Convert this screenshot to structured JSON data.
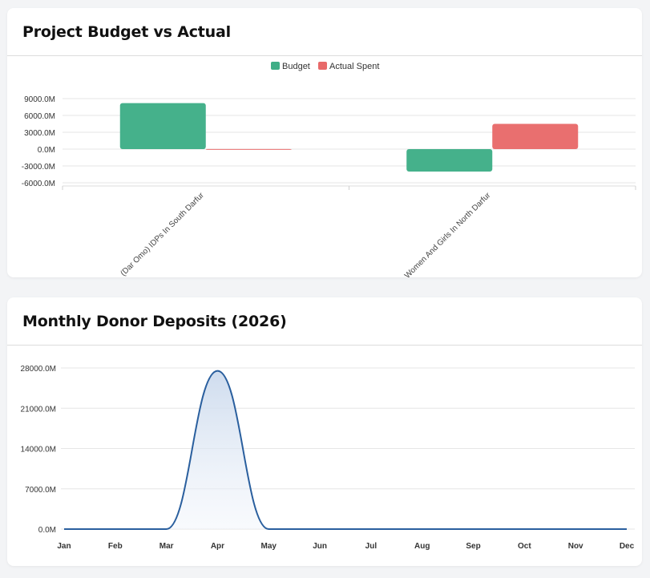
{
  "cards": {
    "budget": {
      "title": "Project Budget vs Actual"
    },
    "deposits": {
      "title": "Monthly Donor Deposits (2026)"
    }
  },
  "colors": {
    "budget": "#3fae87",
    "actual": "#e86a6a",
    "line": "#2a5f9e",
    "grid": "#e6e6e6"
  },
  "chart_data": [
    {
      "type": "bar",
      "categories": [
        "(Dar Omo) IDPs In South Darfur",
        "Women And Girls In North Darfur"
      ],
      "legend": [
        "Budget",
        "Actual Spent"
      ],
      "series": [
        {
          "name": "Budget",
          "values": [
            8200,
            -4000
          ]
        },
        {
          "name": "Actual Spent",
          "values": [
            20,
            4500
          ]
        }
      ],
      "yticks": [
        "9000.0M",
        "6000.0M",
        "3000.0M",
        "0.0M",
        "-3000.0M",
        "-6000.0M"
      ],
      "ylim": [
        -6000,
        9000
      ],
      "grid": true,
      "legend_position": "top"
    },
    {
      "type": "area",
      "x": [
        "Jan",
        "Feb",
        "Mar",
        "Apr",
        "May",
        "Jun",
        "Jul",
        "Aug",
        "Sep",
        "Oct",
        "Nov",
        "Dec"
      ],
      "series": [
        {
          "values": [
            0,
            0,
            0,
            27500,
            0,
            0,
            0,
            0,
            0,
            0,
            0,
            0
          ]
        }
      ],
      "yticks": [
        "28000.0M",
        "21000.0M",
        "14000.0M",
        "7000.0M",
        "0.0M"
      ],
      "ylim": [
        0,
        28000
      ],
      "grid": true
    }
  ]
}
